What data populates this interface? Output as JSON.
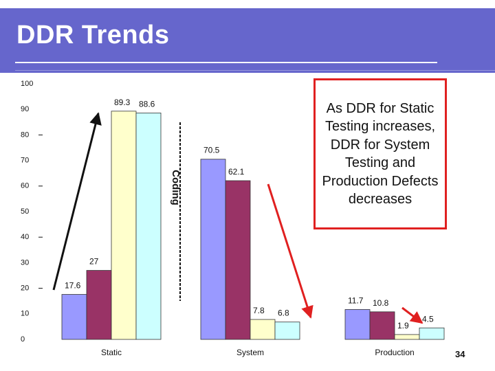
{
  "slide": {
    "title": "DDR Trends",
    "callout_text": "As DDR for Static Testing increases, DDR for System Testing and Production Defects decreases",
    "slide_number": "34",
    "divider_label": "Coding"
  },
  "colors": {
    "header": "#6666cc",
    "arrow_black": "#111111",
    "arrow_red": "#e02020",
    "callout_border": "#e02020"
  },
  "chart_data": {
    "type": "bar",
    "title": "",
    "xlabel": "",
    "ylabel": "",
    "ylim": [
      0,
      100
    ],
    "yticks": [
      "0",
      "10",
      "20",
      "30",
      "40",
      "50",
      "60",
      "70",
      "80",
      "90",
      "100"
    ],
    "categories": [
      "Static",
      "System",
      "Production"
    ],
    "series": [
      {
        "color": "#9999ff",
        "values": [
          17.6,
          70.5,
          11.7
        ],
        "labels": [
          "17.6",
          "70.5",
          "11.7"
        ]
      },
      {
        "color": "#993366",
        "values": [
          27,
          62.1,
          10.8
        ],
        "labels": [
          "27",
          "62.1",
          "10.8"
        ]
      },
      {
        "color": "#ffffcc",
        "values": [
          89.3,
          7.8,
          1.9
        ],
        "labels": [
          "89.3",
          "7.8",
          "1.9"
        ]
      },
      {
        "color": "#ccffff",
        "values": [
          88.6,
          6.8,
          4.5
        ],
        "labels": [
          "88.6",
          "6.8",
          "4.5"
        ]
      }
    ],
    "grid": false,
    "legend": "none"
  }
}
